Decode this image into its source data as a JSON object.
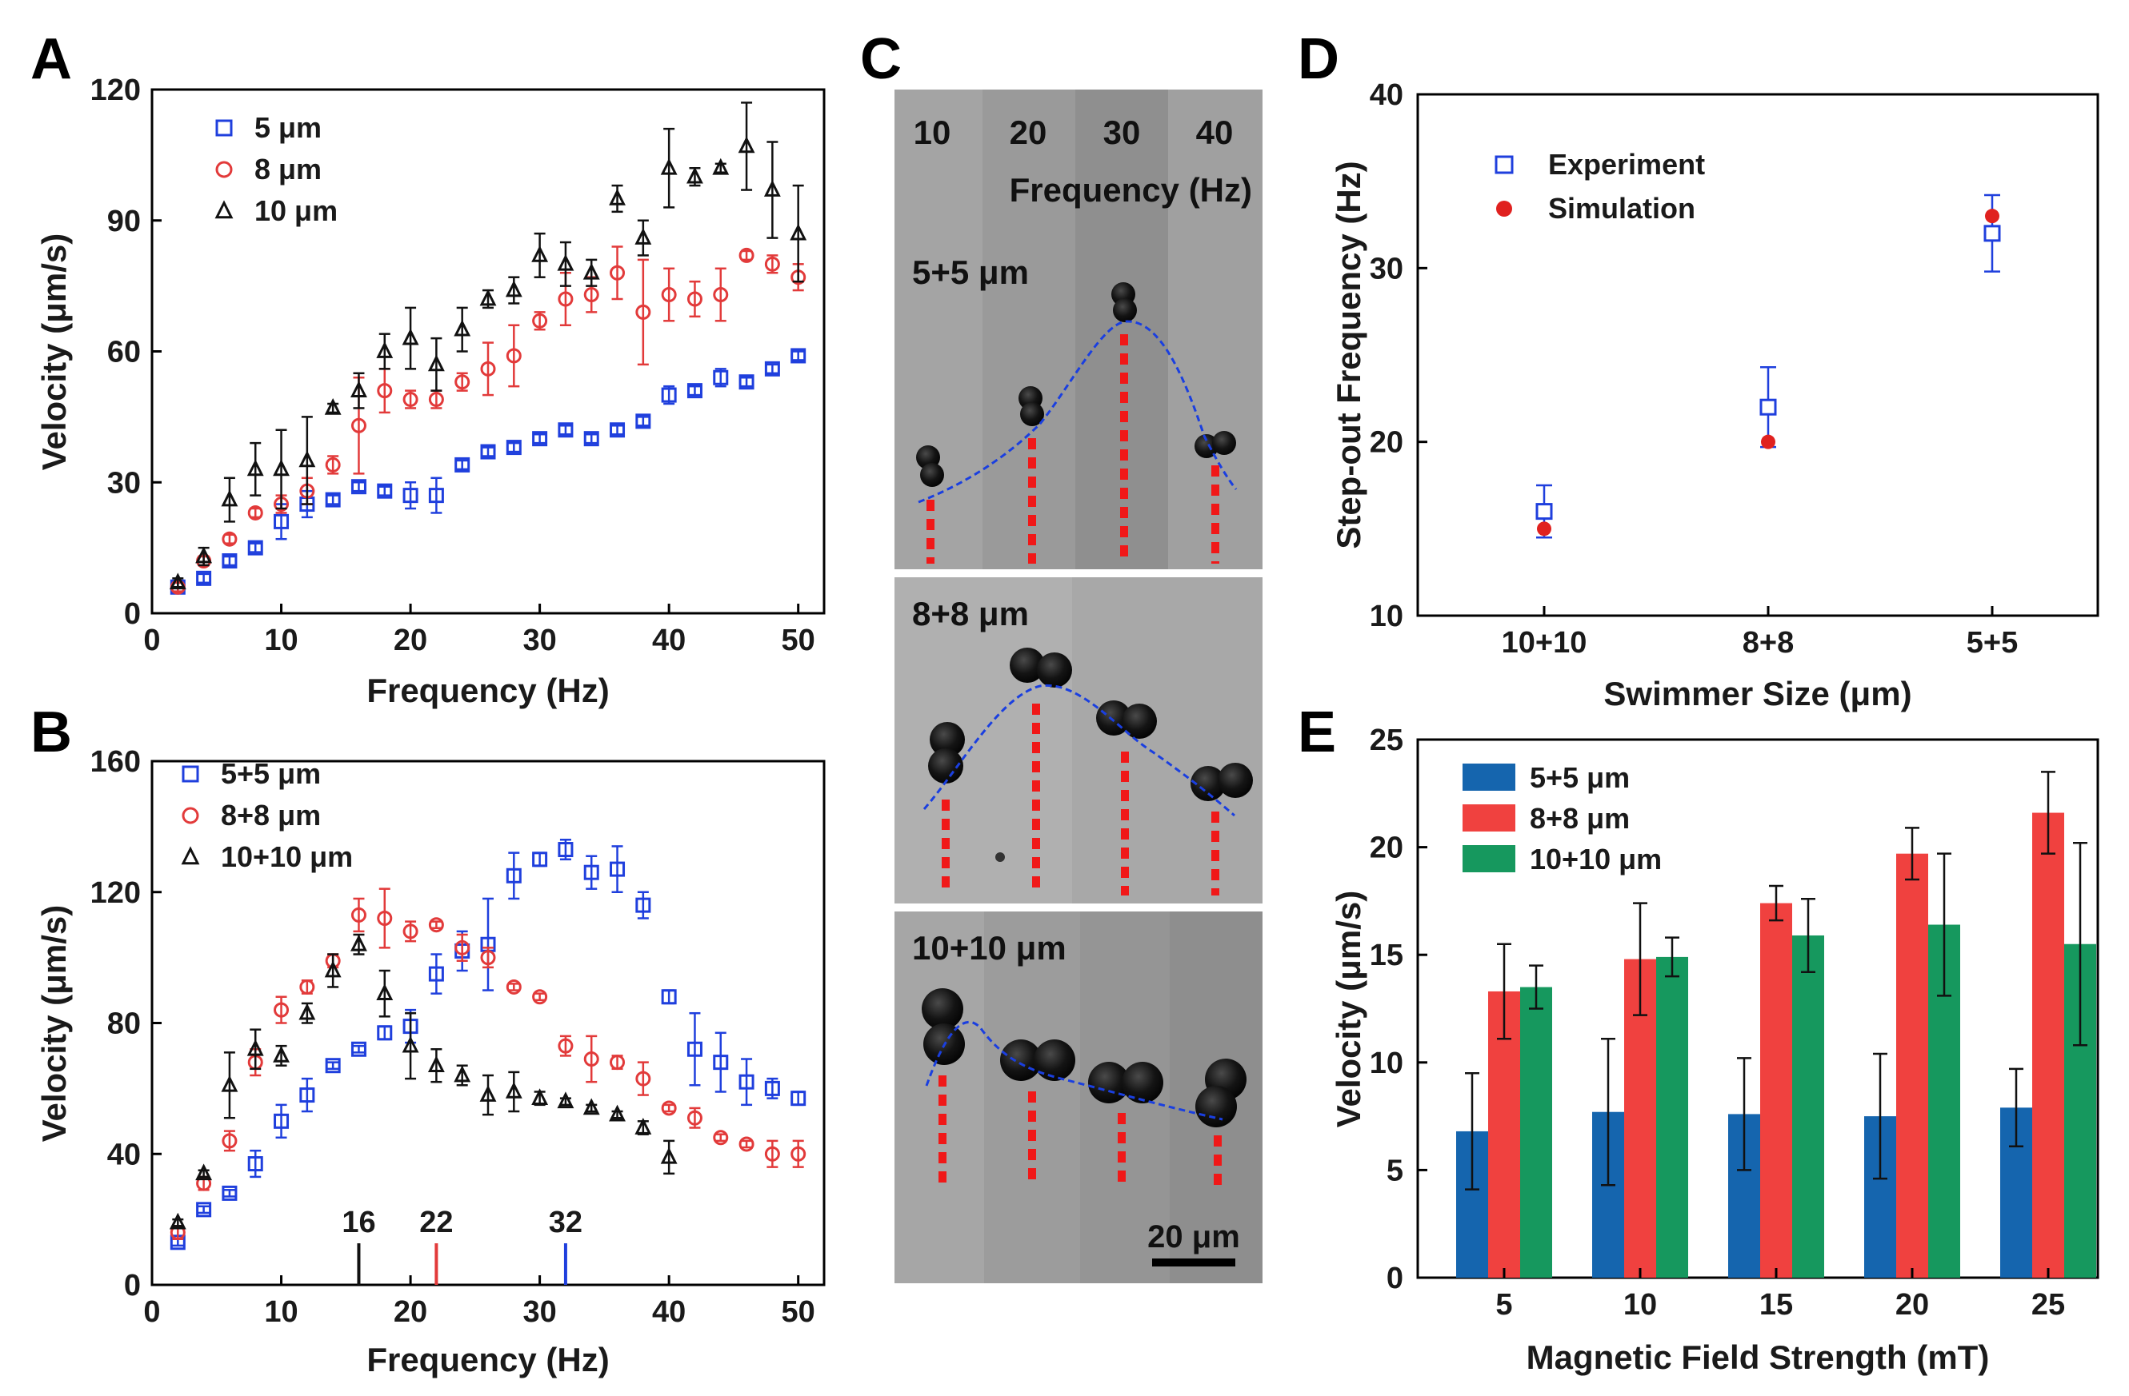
{
  "panel_letters": [
    "A",
    "B",
    "C",
    "D",
    "E"
  ],
  "chart_data": [
    {
      "id": "A",
      "type": "scatter",
      "xlabel": "Frequency (Hz)",
      "ylabel": "Velocity (μm/s)",
      "xlim": [
        0,
        52
      ],
      "ylim": [
        0,
        120
      ],
      "xticks": [
        0,
        10,
        20,
        30,
        40,
        50
      ],
      "yticks": [
        0,
        30,
        60,
        90,
        120
      ],
      "legend": "top-left",
      "series": [
        {
          "name": "5 μm",
          "marker": "square",
          "color": "#1f3fdd",
          "x": [
            2,
            4,
            6,
            8,
            10,
            12,
            14,
            16,
            18,
            20,
            22,
            24,
            26,
            28,
            30,
            32,
            34,
            36,
            38,
            40,
            42,
            44,
            46,
            48,
            50
          ],
          "y": [
            6,
            8,
            12,
            15,
            21,
            25,
            26,
            29,
            28,
            27,
            27,
            34,
            37,
            38,
            40,
            42,
            40,
            42,
            44,
            50,
            51,
            54,
            53,
            56,
            59
          ],
          "err": [
            1,
            1,
            1,
            1,
            4,
            3,
            1,
            1,
            1,
            3,
            4,
            1,
            1,
            1,
            1,
            1,
            1,
            1,
            1,
            2,
            1,
            2,
            1,
            1,
            1
          ]
        },
        {
          "name": "8 μm",
          "marker": "circle",
          "color": "#e23a3a",
          "x": [
            2,
            4,
            6,
            8,
            10,
            12,
            14,
            16,
            18,
            20,
            22,
            24,
            26,
            28,
            30,
            32,
            34,
            36,
            38,
            40,
            42,
            44,
            46,
            48,
            50
          ],
          "y": [
            6,
            12,
            17,
            23,
            25,
            28,
            34,
            43,
            51,
            49,
            49,
            53,
            56,
            59,
            67,
            72,
            73,
            78,
            69,
            73,
            72,
            73,
            82,
            80,
            77
          ],
          "err": [
            1,
            1,
            1,
            1,
            2,
            3,
            2,
            11,
            5,
            2,
            2,
            2,
            6,
            7,
            2,
            6,
            4,
            6,
            12,
            6,
            4,
            6,
            1,
            2,
            3
          ]
        },
        {
          "name": "10 μm",
          "marker": "triangle",
          "color": "#111111",
          "x": [
            2,
            4,
            6,
            8,
            10,
            12,
            14,
            16,
            18,
            20,
            22,
            24,
            26,
            28,
            30,
            32,
            34,
            36,
            38,
            40,
            42,
            44,
            46,
            48,
            50
          ],
          "y": [
            7,
            13,
            26,
            33,
            33,
            35,
            47,
            51,
            60,
            63,
            57,
            65,
            72,
            74,
            82,
            80,
            78,
            95,
            86,
            102,
            100,
            102,
            107,
            97,
            87
          ],
          "err": [
            1,
            2,
            5,
            6,
            9,
            10,
            1,
            4,
            4,
            7,
            6,
            5,
            2,
            3,
            5,
            5,
            3,
            3,
            4,
            9,
            2,
            1,
            10,
            11,
            11
          ]
        }
      ]
    },
    {
      "id": "B",
      "type": "scatter",
      "xlabel": "Frequency (Hz)",
      "ylabel": "Velocity (μm/s)",
      "xlim": [
        0,
        52
      ],
      "ylim": [
        0,
        160
      ],
      "xticks": [
        0,
        10,
        20,
        30,
        40,
        50
      ],
      "yticks": [
        0,
        40,
        80,
        120,
        160
      ],
      "legend": "top-left",
      "annotations": [
        {
          "x": 16,
          "label": "16",
          "color": "#111111"
        },
        {
          "x": 22,
          "label": "22",
          "color": "#e23a3a"
        },
        {
          "x": 32,
          "label": "32",
          "color": "#1f3fdd"
        }
      ],
      "series": [
        {
          "name": "5+5 μm",
          "marker": "square",
          "color": "#1f3fdd",
          "x": [
            2,
            4,
            6,
            8,
            10,
            12,
            14,
            16,
            18,
            20,
            22,
            24,
            26,
            28,
            30,
            32,
            34,
            36,
            38,
            40,
            42,
            44,
            46,
            48,
            50
          ],
          "y": [
            13,
            23,
            28,
            37,
            50,
            58,
            67,
            72,
            77,
            79,
            95,
            102,
            104,
            125,
            130,
            133,
            126,
            127,
            116,
            88,
            72,
            68,
            62,
            60,
            57
          ],
          "err": [
            1,
            1,
            1,
            4,
            5,
            5,
            1,
            1,
            2,
            5,
            6,
            6,
            14,
            7,
            2,
            3,
            5,
            7,
            4,
            2,
            11,
            9,
            7,
            3,
            2
          ]
        },
        {
          "name": "8+8 μm",
          "marker": "circle",
          "color": "#e23a3a",
          "x": [
            2,
            4,
            6,
            8,
            10,
            12,
            14,
            16,
            18,
            20,
            22,
            24,
            26,
            28,
            30,
            32,
            34,
            36,
            38,
            40,
            42,
            44,
            46,
            48,
            50
          ],
          "y": [
            16,
            31,
            44,
            68,
            84,
            91,
            99,
            113,
            112,
            108,
            110,
            103,
            100,
            91,
            88,
            73,
            69,
            68,
            63,
            54,
            51,
            45,
            43,
            40,
            40
          ],
          "err": [
            2,
            2,
            3,
            4,
            4,
            2,
            2,
            5,
            9,
            3,
            1,
            4,
            3,
            1,
            1,
            3,
            7,
            2,
            5,
            1,
            3,
            1,
            1,
            4,
            4
          ]
        },
        {
          "name": "10+10 μm",
          "marker": "triangle",
          "color": "#111111",
          "x": [
            2,
            4,
            6,
            8,
            10,
            12,
            14,
            16,
            18,
            20,
            22,
            24,
            26,
            28,
            30,
            32,
            34,
            36,
            38,
            40
          ],
          "y": [
            19,
            34,
            61,
            72,
            70,
            83,
            96,
            104,
            89,
            73,
            67,
            64,
            58,
            59,
            57,
            56,
            54,
            52,
            48,
            39
          ],
          "err": [
            1,
            1,
            10,
            6,
            3,
            3,
            5,
            3,
            7,
            10,
            5,
            3,
            6,
            6,
            2,
            1,
            1,
            1,
            2,
            5
          ]
        }
      ]
    },
    {
      "id": "D",
      "type": "scatter",
      "xlabel": "Swimmer Size (μm)",
      "ylabel": "Step-out Frequency (Hz)",
      "categories": [
        "10+10",
        "8+8",
        "5+5"
      ],
      "ylim": [
        10,
        40
      ],
      "yticks": [
        10,
        20,
        30,
        40
      ],
      "legend": "top-left",
      "series": [
        {
          "name": "Experiment",
          "marker": "square-open",
          "color": "#1f3fdd",
          "values": [
            16,
            22,
            32
          ],
          "err": [
            1.5,
            2.3,
            2.2
          ]
        },
        {
          "name": "Simulation",
          "marker": "circle-filled",
          "color": "#e0211f",
          "values": [
            15,
            20,
            33
          ],
          "err": [
            0,
            0,
            0
          ]
        }
      ]
    },
    {
      "id": "E",
      "type": "bar",
      "xlabel": "Magnetic Field Strength (mT)",
      "ylabel": "Velocity (μm/s)",
      "categories": [
        "5",
        "10",
        "15",
        "20",
        "25"
      ],
      "ylim": [
        0,
        25
      ],
      "yticks": [
        0,
        5,
        10,
        15,
        20,
        25
      ],
      "legend": "top-left",
      "series": [
        {
          "name": "5+5 μm",
          "color": "#1565ae",
          "values": [
            6.8,
            7.7,
            7.6,
            7.5,
            7.9
          ],
          "err": [
            2.7,
            3.4,
            2.6,
            2.9,
            1.8
          ]
        },
        {
          "name": "8+8 μm",
          "color": "#f0413f",
          "values": [
            13.3,
            14.8,
            17.4,
            19.7,
            21.6
          ],
          "err": [
            2.2,
            2.6,
            0.8,
            1.2,
            1.9
          ]
        },
        {
          "name": "10+10 μm",
          "color": "#16985e",
          "values": [
            13.5,
            14.9,
            15.9,
            16.4,
            15.5
          ],
          "err": [
            1.0,
            0.9,
            1.7,
            3.3,
            4.7
          ]
        }
      ]
    }
  ],
  "panelC": {
    "freq_labels": [
      "10",
      "20",
      "30",
      "40"
    ],
    "freq_title": "Frequency (Hz)",
    "sub_labels": [
      "5+5 μm",
      "8+8 μm",
      "10+10 μm"
    ],
    "scalebar_label": "20 μm"
  }
}
